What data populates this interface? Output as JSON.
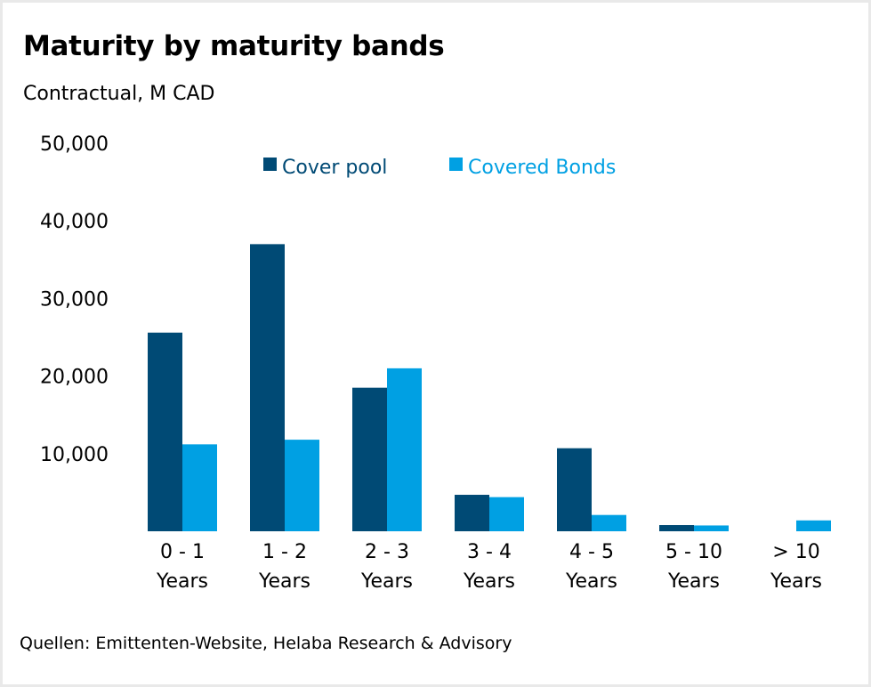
{
  "chart_data": {
    "type": "bar",
    "title": "Maturity by maturity bands",
    "subtitle": "Contractual, M CAD",
    "xlabel": "",
    "ylabel": "",
    "categories": [
      [
        "0 - 1",
        "Years"
      ],
      [
        "1 - 2",
        "Years"
      ],
      [
        "2 - 3",
        "Years"
      ],
      [
        "3 - 4",
        "Years"
      ],
      [
        "4 - 5",
        "Years"
      ],
      [
        "5 - 10",
        "Years"
      ],
      [
        "> 10",
        "Years"
      ]
    ],
    "series": [
      {
        "name": "Cover pool",
        "color": "#004a75",
        "values": [
          25600,
          37000,
          18500,
          4700,
          10700,
          800,
          0
        ]
      },
      {
        "name": "Covered Bonds",
        "color": "#00a0e3",
        "values": [
          11200,
          11800,
          21000,
          4400,
          2100,
          750,
          1400
        ]
      }
    ],
    "ylim": [
      0,
      50000
    ],
    "yticks": [
      10000,
      20000,
      30000,
      40000,
      50000
    ],
    "ytick_labels": [
      "10,000",
      "20,000",
      "30,000",
      "40,000",
      "50,000"
    ],
    "grid": false,
    "legend_position": "top-center",
    "source": "Quellen: Emittenten-Website, Helaba Research & Advisory"
  }
}
